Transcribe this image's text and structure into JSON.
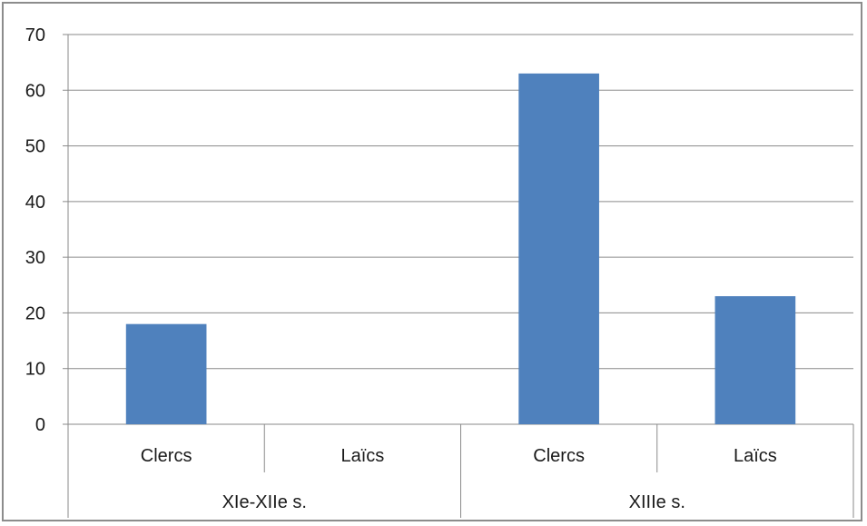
{
  "chart_data": {
    "type": "bar",
    "title": "",
    "xlabel": "",
    "ylabel": "",
    "ylim": [
      0,
      70
    ],
    "y_ticks": [
      0,
      10,
      20,
      30,
      40,
      50,
      60,
      70
    ],
    "y_tick_labels": [
      "0",
      "10",
      "20",
      "30",
      "40",
      "50",
      "60",
      "70"
    ],
    "grid": true,
    "legend": "none",
    "bar_color": "#4f81bd",
    "groups": [
      {
        "label": "XIe-XIIe s.",
        "categories": [
          "Clercs",
          "Laïcs"
        ],
        "values": [
          18,
          0
        ]
      },
      {
        "label": "XIIIe s.",
        "categories": [
          "Clercs",
          "Laïcs"
        ],
        "values": [
          63,
          23
        ]
      }
    ]
  }
}
